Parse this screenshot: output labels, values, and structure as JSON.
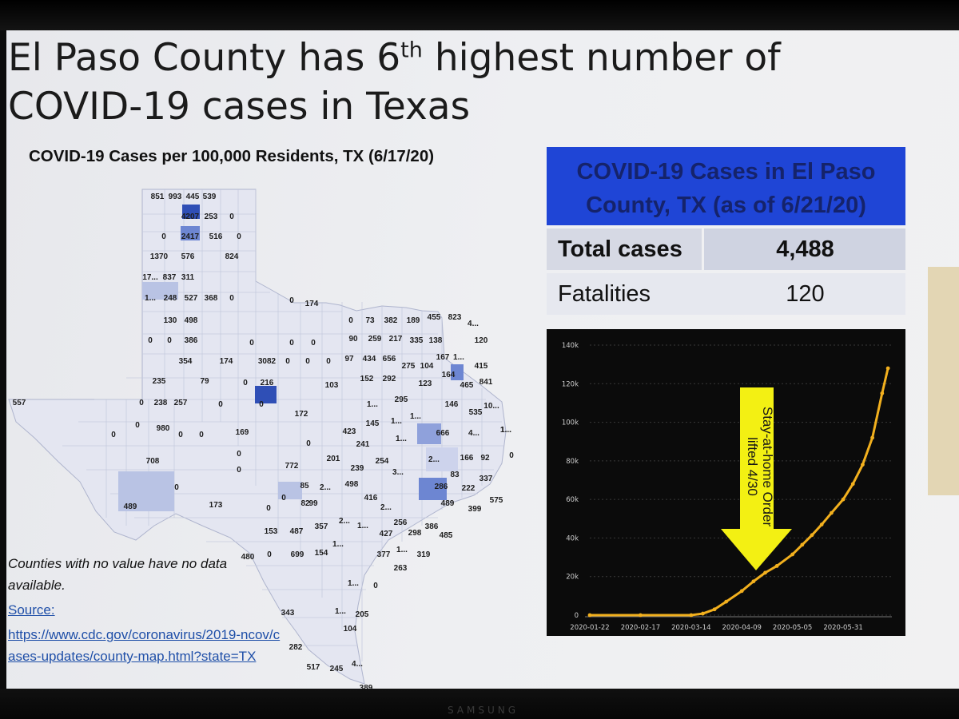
{
  "title": {
    "line1_before": "El Paso County has 6",
    "line1_sup": "th",
    "line1_after": " highest number of",
    "line2": "COVID-19 cases in Texas"
  },
  "map": {
    "title": "COVID-19 Cases per 100,000 Residents, TX (6/17/20)",
    "note": "Counties with no value have no data available.",
    "source_label": "Source:",
    "source_url": "https://www.cdc.gov/coronavirus/2019-ncov/cases-updates/county-map.html?state=TX",
    "colors": {
      "light": "#e4e6f1",
      "mid": "#b9c3e4",
      "strong": "#6d86d2",
      "dark": "#2f4fb6"
    },
    "labels": [
      {
        "t": "851",
        "v": 851
      },
      {
        "t": "993",
        "v": 993
      },
      {
        "t": "445",
        "v": 445
      },
      {
        "t": "539",
        "v": 539
      },
      {
        "t": "4207",
        "v": 4207
      },
      {
        "t": "253",
        "v": 253
      },
      {
        "t": "0",
        "v": 0
      },
      {
        "t": "0",
        "v": 0
      },
      {
        "t": "2417",
        "v": 2417
      },
      {
        "t": "516",
        "v": 516
      },
      {
        "t": "0",
        "v": 0
      },
      {
        "t": "1370",
        "v": 1370
      },
      {
        "t": "576",
        "v": 576
      },
      {
        "t": "824",
        "v": 824
      },
      {
        "t": "17...",
        "v": 1700
      },
      {
        "t": "837",
        "v": 837
      },
      {
        "t": "311",
        "v": 311
      },
      {
        "t": "1...",
        "v": 1000
      },
      {
        "t": "248",
        "v": 248
      },
      {
        "t": "527",
        "v": 527
      },
      {
        "t": "368",
        "v": 368
      },
      {
        "t": "0",
        "v": 0
      },
      {
        "t": "0",
        "v": 0
      },
      {
        "t": "174",
        "v": 174
      },
      {
        "t": "130",
        "v": 130
      },
      {
        "t": "498",
        "v": 498
      },
      {
        "t": "0",
        "v": 0
      },
      {
        "t": "73",
        "v": 73
      },
      {
        "t": "382",
        "v": 382
      },
      {
        "t": "189",
        "v": 189
      },
      {
        "t": "455",
        "v": 455
      },
      {
        "t": "823",
        "v": 823
      },
      {
        "t": "4...",
        "v": 400
      },
      {
        "t": "0",
        "v": 0
      },
      {
        "t": "0",
        "v": 0
      },
      {
        "t": "386",
        "v": 386
      },
      {
        "t": "0",
        "v": 0
      },
      {
        "t": "0",
        "v": 0
      },
      {
        "t": "0",
        "v": 0
      },
      {
        "t": "90",
        "v": 90
      },
      {
        "t": "259",
        "v": 259
      },
      {
        "t": "217",
        "v": 217
      },
      {
        "t": "335",
        "v": 335
      },
      {
        "t": "138",
        "v": 138
      },
      {
        "t": "120",
        "v": 120
      },
      {
        "t": "354",
        "v": 354
      },
      {
        "t": "174",
        "v": 174
      },
      {
        "t": "3082",
        "v": 3082
      },
      {
        "t": "0",
        "v": 0
      },
      {
        "t": "0",
        "v": 0
      },
      {
        "t": "0",
        "v": 0
      },
      {
        "t": "97",
        "v": 97
      },
      {
        "t": "434",
        "v": 434
      },
      {
        "t": "656",
        "v": 656
      },
      {
        "t": "275",
        "v": 275
      },
      {
        "t": "104",
        "v": 104
      },
      {
        "t": "167",
        "v": 167
      },
      {
        "t": "1...",
        "v": 1000
      },
      {
        "t": "415",
        "v": 415
      },
      {
        "t": "235",
        "v": 235
      },
      {
        "t": "79",
        "v": 79
      },
      {
        "t": "0",
        "v": 0
      },
      {
        "t": "216",
        "v": 216
      },
      {
        "t": "103",
        "v": 103
      },
      {
        "t": "152",
        "v": 152
      },
      {
        "t": "292",
        "v": 292
      },
      {
        "t": "123",
        "v": 123
      },
      {
        "t": "164",
        "v": 164
      },
      {
        "t": "465",
        "v": 465
      },
      {
        "t": "841",
        "v": 841
      },
      {
        "t": "557",
        "v": 557
      },
      {
        "t": "0",
        "v": 0
      },
      {
        "t": "238",
        "v": 238
      },
      {
        "t": "257",
        "v": 257
      },
      {
        "t": "0",
        "v": 0
      },
      {
        "t": "0",
        "v": 0
      },
      {
        "t": "1...",
        "v": 1000
      },
      {
        "t": "295",
        "v": 295
      },
      {
        "t": "1...",
        "v": 1000
      },
      {
        "t": "146",
        "v": 146
      },
      {
        "t": "535",
        "v": 535
      },
      {
        "t": "10...",
        "v": 1000
      },
      {
        "t": "172",
        "v": 172
      },
      {
        "t": "145",
        "v": 145
      },
      {
        "t": "1...",
        "v": 1000
      },
      {
        "t": "1...",
        "v": 1000
      },
      {
        "t": "0",
        "v": 0
      },
      {
        "t": "0",
        "v": 0
      },
      {
        "t": "980",
        "v": 980
      },
      {
        "t": "0",
        "v": 0
      },
      {
        "t": "0",
        "v": 0
      },
      {
        "t": "169",
        "v": 169
      },
      {
        "t": "423",
        "v": 423
      },
      {
        "t": "666",
        "v": 666
      },
      {
        "t": "4...",
        "v": 400
      },
      {
        "t": "1...",
        "v": 1000
      },
      {
        "t": "0",
        "v": 0
      },
      {
        "t": "241",
        "v": 241
      },
      {
        "t": "1...",
        "v": 1000
      },
      {
        "t": "708",
        "v": 708
      },
      {
        "t": "0",
        "v": 0
      },
      {
        "t": "772",
        "v": 772
      },
      {
        "t": "201",
        "v": 201
      },
      {
        "t": "254",
        "v": 254
      },
      {
        "t": "2...",
        "v": 2000
      },
      {
        "t": "166",
        "v": 166
      },
      {
        "t": "92",
        "v": 92
      },
      {
        "t": "0",
        "v": 0
      },
      {
        "t": "0",
        "v": 0
      },
      {
        "t": "239",
        "v": 239
      },
      {
        "t": "3...",
        "v": 300
      },
      {
        "t": "83",
        "v": 83
      },
      {
        "t": "337",
        "v": 337
      },
      {
        "t": "0",
        "v": 0
      },
      {
        "t": "85",
        "v": 85
      },
      {
        "t": "2...",
        "v": 200
      },
      {
        "t": "498",
        "v": 498
      },
      {
        "t": "286",
        "v": 286
      },
      {
        "t": "222",
        "v": 222
      },
      {
        "t": "0",
        "v": 0
      },
      {
        "t": "82",
        "v": 82
      },
      {
        "t": "99",
        "v": 99
      },
      {
        "t": "416",
        "v": 416
      },
      {
        "t": "575",
        "v": 575
      },
      {
        "t": "489",
        "v": 489
      },
      {
        "t": "173",
        "v": 173
      },
      {
        "t": "0",
        "v": 0
      },
      {
        "t": "2...",
        "v": 200
      },
      {
        "t": "489",
        "v": 489
      },
      {
        "t": "399",
        "v": 399
      },
      {
        "t": "256",
        "v": 256
      },
      {
        "t": "386",
        "v": 386
      },
      {
        "t": "153",
        "v": 153
      },
      {
        "t": "487",
        "v": 487
      },
      {
        "t": "357",
        "v": 357
      },
      {
        "t": "2...",
        "v": 200
      },
      {
        "t": "1...",
        "v": 1000
      },
      {
        "t": "427",
        "v": 427
      },
      {
        "t": "298",
        "v": 298
      },
      {
        "t": "485",
        "v": 485
      },
      {
        "t": "1...",
        "v": 100
      },
      {
        "t": "480",
        "v": 480
      },
      {
        "t": "0",
        "v": 0
      },
      {
        "t": "699",
        "v": 699
      },
      {
        "t": "154",
        "v": 154
      },
      {
        "t": "377",
        "v": 377
      },
      {
        "t": "1...",
        "v": 100
      },
      {
        "t": "319",
        "v": 319
      },
      {
        "t": "263",
        "v": 263
      },
      {
        "t": "1...",
        "v": 100
      },
      {
        "t": "0",
        "v": 0
      },
      {
        "t": "343",
        "v": 343
      },
      {
        "t": "1...",
        "v": 100
      },
      {
        "t": "205",
        "v": 205
      },
      {
        "t": "104",
        "v": 104
      },
      {
        "t": "282",
        "v": 282
      },
      {
        "t": "517",
        "v": 517
      },
      {
        "t": "245",
        "v": 245
      },
      {
        "t": "4...",
        "v": 400
      },
      {
        "t": "389",
        "v": 389
      }
    ]
  },
  "stats": {
    "header": "COVID-19 Cases in El Paso County, TX (as of 6/21/20)",
    "total_label": "Total cases",
    "total_value": "4,488",
    "fatalities_label": "Fatalities",
    "fatalities_value": "120"
  },
  "chart_data": {
    "type": "line",
    "title": "",
    "xlabel": "",
    "ylabel": "",
    "line_color": "#f2b01e",
    "x_tick_labels": [
      "2020-01-22",
      "2020-02-17",
      "2020-03-14",
      "2020-04-09",
      "2020-05-05",
      "2020-05-31"
    ],
    "y_tick_labels": [
      "0",
      "20k",
      "40k",
      "60k",
      "80k",
      "100k",
      "120k",
      "140k"
    ],
    "ylim": [
      0,
      140000
    ],
    "x": [
      "2020-01-22",
      "2020-02-17",
      "2020-03-14",
      "2020-03-20",
      "2020-03-26",
      "2020-04-01",
      "2020-04-09",
      "2020-04-15",
      "2020-04-21",
      "2020-04-27",
      "2020-05-05",
      "2020-05-10",
      "2020-05-15",
      "2020-05-20",
      "2020-05-25",
      "2020-05-31",
      "2020-06-05",
      "2020-06-10",
      "2020-06-15",
      "2020-06-20",
      "2020-06-23"
    ],
    "y": [
      0,
      0,
      0,
      800,
      3000,
      7000,
      12500,
      17500,
      22000,
      25500,
      31500,
      36500,
      41500,
      47000,
      53000,
      60000,
      68000,
      78000,
      92000,
      115000,
      128000
    ],
    "annotation": {
      "line1": "Stay-at-home Order",
      "line2": "lifted 4/30",
      "arrow_color": "#f3f013"
    }
  }
}
